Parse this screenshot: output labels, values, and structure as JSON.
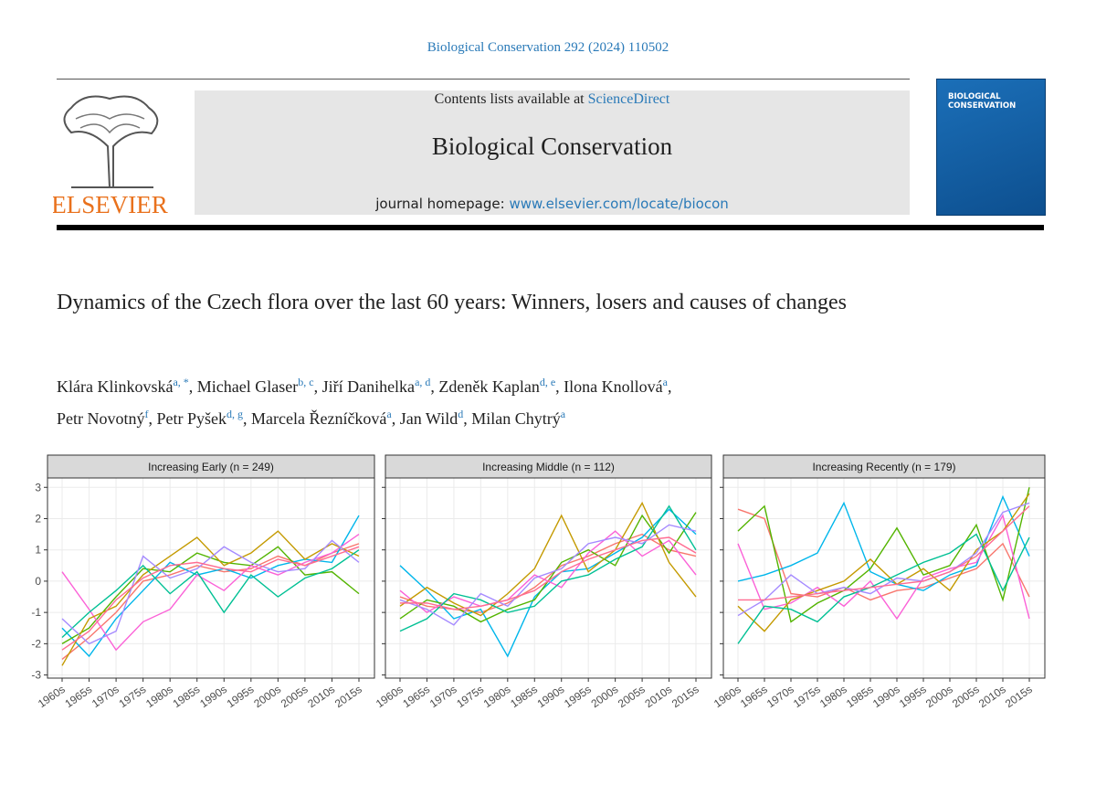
{
  "header": {
    "citation": "Biological Conservation 292 (2024) 110502",
    "contents_prefix": "Contents lists available at",
    "contents_link": "ScienceDirect",
    "journal": "Biological Conservation",
    "homepage_label": "journal homepage:",
    "homepage_url": "www.elsevier.com/locate/biocon",
    "publisher": "ELSEVIER",
    "cover_title": "BIOLOGICAL CONSERVATION"
  },
  "article": {
    "title": "Dynamics of the Czech flora over the last 60 years: Winners, losers and causes of changes",
    "authors": [
      {
        "name": "Klára Klinkovská",
        "affil": "a, *",
        "sep": ","
      },
      {
        "name": "Michael Glaser",
        "affil": "b, c",
        "sep": ","
      },
      {
        "name": "Jiří Danihelka",
        "affil": "a, d",
        "sep": ","
      },
      {
        "name": "Zdeněk Kaplan",
        "affil": "d, e",
        "sep": ","
      },
      {
        "name": "Ilona Knollová",
        "affil": "a",
        "sep": ","
      },
      {
        "name": "Petr Novotný",
        "affil": "f",
        "sep": ","
      },
      {
        "name": "Petr Pyšek",
        "affil": "d, g",
        "sep": ","
      },
      {
        "name": "Marcela Řezníčková",
        "affil": "a",
        "sep": ","
      },
      {
        "name": "Jan Wild",
        "affil": "d",
        "sep": ","
      },
      {
        "name": "Milan Chytrý",
        "affil": "a"
      }
    ]
  },
  "chart_data": [
    {
      "type": "line",
      "title": "Increasing Early (n = 249)",
      "categories": [
        "1960s",
        "1965s",
        "1970s",
        "1975s",
        "1980s",
        "1985s",
        "1990s",
        "1995s",
        "2000s",
        "2005s",
        "2010s",
        "2015s"
      ],
      "ylim": [
        -3.1,
        3.3
      ],
      "yticks": [
        -3,
        -2,
        -1,
        0,
        1,
        2,
        3
      ],
      "grid": true,
      "series": [
        {
          "color": "#F8766D",
          "values": [
            -2.5,
            -1.8,
            -1.0,
            0,
            0.2,
            0.5,
            0.3,
            0.4,
            0.8,
            0.5,
            0.9,
            1.2
          ]
        },
        {
          "color": "#00B6EB",
          "values": [
            -1.5,
            -2.4,
            -1.2,
            -0.3,
            0.6,
            0.2,
            0.4,
            0.1,
            0.5,
            0.7,
            0.6,
            2.1
          ]
        },
        {
          "color": "#53B400",
          "values": [
            -2.0,
            -1.5,
            -0.5,
            0.4,
            0.3,
            0.9,
            0.6,
            0.5,
            1.1,
            0.2,
            0.3,
            -0.4
          ]
        },
        {
          "color": "#FB61D7",
          "values": [
            0.3,
            -0.9,
            -2.2,
            -1.3,
            -0.9,
            0.2,
            -0.3,
            0.5,
            0.2,
            0.6,
            0.9,
            1.5
          ]
        },
        {
          "color": "#C49A00",
          "values": [
            -2.7,
            -1.2,
            -0.8,
            0.2,
            0.8,
            1.4,
            0.5,
            0.9,
            1.6,
            0.7,
            1.2,
            0.8
          ]
        },
        {
          "color": "#00C094",
          "values": [
            -1.8,
            -1.0,
            -0.3,
            0.5,
            -0.4,
            0.3,
            -1.0,
            0.2,
            -0.5,
            0.1,
            0.4,
            1.0
          ]
        },
        {
          "color": "#A58AFF",
          "values": [
            -1.2,
            -2.0,
            -1.6,
            0.8,
            0.1,
            0.4,
            1.1,
            0.6,
            0.3,
            0.4,
            1.3,
            0.6
          ]
        },
        {
          "color": "#FF6C91",
          "values": [
            -2.2,
            -1.6,
            -0.6,
            0.1,
            0.5,
            0.6,
            0.4,
            0.3,
            0.7,
            0.5,
            0.8,
            1.1
          ]
        }
      ]
    },
    {
      "type": "line",
      "title": "Increasing Middle (n = 112)",
      "categories": [
        "1960s",
        "1965s",
        "1970s",
        "1975s",
        "1980s",
        "1985s",
        "1990s",
        "1995s",
        "2000s",
        "2005s",
        "2010s",
        "2015s"
      ],
      "ylim": [
        -3.1,
        3.3
      ],
      "yticks": [
        -3,
        -2,
        -1,
        0,
        1,
        2,
        3
      ],
      "grid": true,
      "series": [
        {
          "color": "#F8766D",
          "values": [
            -0.5,
            -0.8,
            -0.9,
            -1.0,
            -0.7,
            -0.2,
            0.5,
            0.8,
            1.2,
            1.5,
            1.0,
            0.8
          ]
        },
        {
          "color": "#00B6EB",
          "values": [
            0.5,
            -0.3,
            -1.2,
            -0.9,
            -2.4,
            -0.5,
            0.3,
            0.4,
            0.9,
            1.4,
            2.3,
            1.5
          ]
        },
        {
          "color": "#53B400",
          "values": [
            -1.2,
            -0.6,
            -0.8,
            -1.3,
            -0.9,
            -0.6,
            0.6,
            1.0,
            0.5,
            2.1,
            0.9,
            2.2
          ]
        },
        {
          "color": "#FB61D7",
          "values": [
            -0.3,
            -1.0,
            -0.5,
            -0.8,
            -0.6,
            0.2,
            -0.2,
            0.9,
            1.6,
            0.8,
            1.3,
            0.2
          ]
        },
        {
          "color": "#C49A00",
          "values": [
            -0.8,
            -0.2,
            -0.7,
            -1.1,
            -0.4,
            0.4,
            2.1,
            0.3,
            1.0,
            2.5,
            0.6,
            -0.5
          ]
        },
        {
          "color": "#00C094",
          "values": [
            -1.6,
            -1.2,
            -0.4,
            -0.6,
            -1.0,
            -0.8,
            0.0,
            0.2,
            0.7,
            1.1,
            2.4,
            1.0
          ]
        },
        {
          "color": "#A58AFF",
          "values": [
            -0.6,
            -0.9,
            -1.4,
            -0.4,
            -0.8,
            0.1,
            0.4,
            1.2,
            1.4,
            1.2,
            1.8,
            1.6
          ]
        },
        {
          "color": "#FF6C91",
          "values": [
            -0.7,
            -0.7,
            -0.9,
            -0.8,
            -0.6,
            -0.3,
            0.3,
            0.7,
            1.0,
            1.3,
            1.4,
            0.9
          ]
        }
      ]
    },
    {
      "type": "line",
      "title": "Increasing Recently (n = 179)",
      "categories": [
        "1960s",
        "1965s",
        "1970s",
        "1975s",
        "1980s",
        "1985s",
        "1990s",
        "1995s",
        "2000s",
        "2005s",
        "2010s",
        "2015s"
      ],
      "ylim": [
        -3.1,
        3.3
      ],
      "yticks": [
        -3,
        -2,
        -1,
        0,
        1,
        2,
        3
      ],
      "grid": true,
      "series": [
        {
          "color": "#F8766D",
          "values": [
            2.3,
            2.0,
            -0.4,
            -0.5,
            -0.2,
            -0.6,
            -0.3,
            -0.2,
            0.1,
            0.4,
            1.2,
            -0.5
          ]
        },
        {
          "color": "#00B6EB",
          "values": [
            0.0,
            0.2,
            0.5,
            0.9,
            2.5,
            0.3,
            -0.1,
            -0.3,
            0.2,
            0.5,
            2.7,
            0.8
          ]
        },
        {
          "color": "#53B400",
          "values": [
            1.6,
            2.4,
            -1.3,
            -0.7,
            -0.3,
            0.4,
            1.7,
            0.2,
            0.5,
            1.8,
            -0.6,
            3.0
          ]
        },
        {
          "color": "#FB61D7",
          "values": [
            1.2,
            -0.9,
            -0.7,
            -0.2,
            -0.8,
            0.0,
            -1.2,
            0.1,
            0.4,
            0.6,
            2.1,
            -1.2
          ]
        },
        {
          "color": "#C49A00",
          "values": [
            -0.8,
            -1.6,
            -0.6,
            -0.3,
            0.0,
            0.7,
            -0.1,
            0.4,
            -0.3,
            1.0,
            1.6,
            2.8
          ]
        },
        {
          "color": "#00C094",
          "values": [
            -2.0,
            -0.8,
            -0.9,
            -1.3,
            -0.5,
            -0.2,
            0.2,
            0.6,
            0.9,
            1.5,
            -0.3,
            1.4
          ]
        },
        {
          "color": "#A58AFF",
          "values": [
            -1.1,
            -0.6,
            0.2,
            -0.4,
            -0.2,
            -0.4,
            0.1,
            0.0,
            0.3,
            0.9,
            2.2,
            2.5
          ]
        },
        {
          "color": "#FF6C91",
          "values": [
            -0.6,
            -0.6,
            -0.5,
            -0.4,
            -0.3,
            -0.2,
            -0.1,
            0.0,
            0.3,
            0.8,
            1.6,
            2.4
          ]
        }
      ]
    }
  ]
}
